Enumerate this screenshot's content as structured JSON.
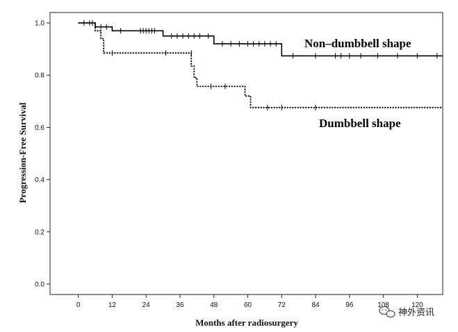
{
  "chart_data": {
    "type": "line",
    "subtype": "kaplan-meier-step",
    "title": "",
    "xlabel": "Months after radiosurgery",
    "ylabel": "Progression-Free Survival",
    "xlim": [
      -10,
      129
    ],
    "ylim": [
      -0.04,
      1.04
    ],
    "x_ticks": [
      0,
      12,
      24,
      36,
      48,
      60,
      72,
      84,
      96,
      108,
      120
    ],
    "x_tick_labels": [
      "0",
      "12",
      "24",
      "36",
      "48",
      "60",
      "72",
      "84",
      "96",
      "108",
      "120"
    ],
    "y_ticks": [
      0.0,
      0.2,
      0.4,
      0.6,
      0.8,
      1.0
    ],
    "y_tick_labels": [
      "0.0",
      "0.2",
      "0.4",
      "0.6",
      "0.8",
      "1.0"
    ],
    "grid": false,
    "series": [
      {
        "name": "Non–dumbbell shape",
        "style": "solid",
        "x": [
          0,
          6,
          6,
          12,
          12,
          30,
          30,
          48,
          48,
          72,
          72,
          129
        ],
        "y": [
          1.0,
          1.0,
          0.985,
          0.985,
          0.97,
          0.97,
          0.95,
          0.95,
          0.92,
          0.92,
          0.874,
          0.874
        ],
        "censored": [
          {
            "x": 2,
            "y": 1.0
          },
          {
            "x": 4,
            "y": 1.0
          },
          {
            "x": 5,
            "y": 1.0
          },
          {
            "x": 8,
            "y": 0.985
          },
          {
            "x": 10,
            "y": 0.985
          },
          {
            "x": 15,
            "y": 0.97
          },
          {
            "x": 22,
            "y": 0.97
          },
          {
            "x": 23,
            "y": 0.97
          },
          {
            "x": 24,
            "y": 0.97
          },
          {
            "x": 25,
            "y": 0.97
          },
          {
            "x": 26,
            "y": 0.97
          },
          {
            "x": 27,
            "y": 0.97
          },
          {
            "x": 33,
            "y": 0.95
          },
          {
            "x": 35,
            "y": 0.95
          },
          {
            "x": 37,
            "y": 0.95
          },
          {
            "x": 39,
            "y": 0.95
          },
          {
            "x": 41,
            "y": 0.95
          },
          {
            "x": 43,
            "y": 0.95
          },
          {
            "x": 46,
            "y": 0.95
          },
          {
            "x": 51,
            "y": 0.92
          },
          {
            "x": 54,
            "y": 0.92
          },
          {
            "x": 57,
            "y": 0.92
          },
          {
            "x": 60,
            "y": 0.92
          },
          {
            "x": 62,
            "y": 0.92
          },
          {
            "x": 64,
            "y": 0.92
          },
          {
            "x": 66,
            "y": 0.92
          },
          {
            "x": 68,
            "y": 0.92
          },
          {
            "x": 70,
            "y": 0.92
          },
          {
            "x": 76,
            "y": 0.874
          },
          {
            "x": 84,
            "y": 0.874
          },
          {
            "x": 91,
            "y": 0.874
          },
          {
            "x": 93,
            "y": 0.874
          },
          {
            "x": 96,
            "y": 0.874
          },
          {
            "x": 100,
            "y": 0.874
          },
          {
            "x": 106,
            "y": 0.874
          },
          {
            "x": 113,
            "y": 0.874
          },
          {
            "x": 120,
            "y": 0.874
          },
          {
            "x": 127,
            "y": 0.874
          }
        ]
      },
      {
        "name": "Dumbbell shape",
        "style": "dotted",
        "x": [
          0,
          6,
          6,
          8,
          8,
          9,
          9,
          40,
          40,
          41,
          41,
          42,
          42,
          59,
          59,
          61,
          61,
          129
        ],
        "y": [
          1.0,
          1.0,
          0.97,
          0.97,
          0.94,
          0.94,
          0.885,
          0.885,
          0.835,
          0.835,
          0.79,
          0.79,
          0.757,
          0.757,
          0.72,
          0.72,
          0.676,
          0.676
        ],
        "censored": [
          {
            "x": 12,
            "y": 0.885
          },
          {
            "x": 31,
            "y": 0.885
          },
          {
            "x": 40,
            "y": 0.885
          },
          {
            "x": 47,
            "y": 0.757
          },
          {
            "x": 52,
            "y": 0.757
          },
          {
            "x": 67,
            "y": 0.676
          },
          {
            "x": 72,
            "y": 0.676
          },
          {
            "x": 84,
            "y": 0.676
          }
        ]
      }
    ],
    "annotations": [
      {
        "text": "Non–dumbbell shape",
        "series": "Non–dumbbell shape"
      },
      {
        "text": "Dumbbell shape",
        "series": "Dumbbell shape"
      }
    ]
  },
  "watermark": {
    "text": "神外资讯",
    "icon": "wechat-bubble-icon"
  },
  "colors": {
    "line": "#000000",
    "axis": "#222222",
    "background": "#ffffff"
  }
}
